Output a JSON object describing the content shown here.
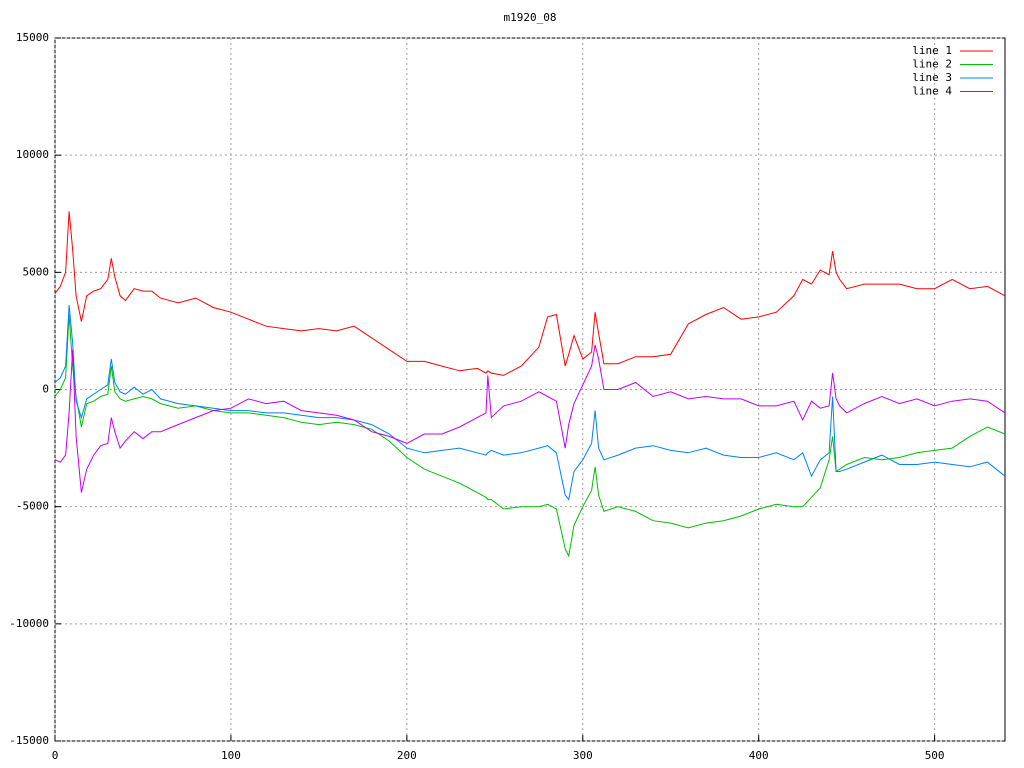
{
  "chart_data": {
    "type": "line",
    "title": "m1920_08",
    "legend": "top-right",
    "grid": true,
    "x": [
      0,
      3,
      6,
      8,
      10,
      12,
      15,
      18,
      22,
      26,
      30,
      32,
      34,
      37,
      40,
      45,
      50,
      55,
      60,
      70,
      80,
      90,
      100,
      110,
      120,
      130,
      140,
      150,
      160,
      170,
      180,
      190,
      200,
      210,
      220,
      230,
      240,
      245,
      246,
      248,
      255,
      265,
      275,
      280,
      285,
      290,
      292,
      295,
      300,
      305,
      307,
      309,
      312,
      320,
      330,
      340,
      350,
      360,
      370,
      380,
      390,
      400,
      410,
      420,
      425,
      430,
      435,
      440,
      442,
      444,
      446,
      450,
      460,
      470,
      480,
      490,
      500,
      510,
      520,
      530,
      540
    ],
    "series": [
      {
        "name": "line 1",
        "color": "#ff0000",
        "values": [
          4100,
          4400,
          5000,
          7600,
          6000,
          4000,
          2900,
          4000,
          4200,
          4300,
          4700,
          5600,
          4800,
          4000,
          3800,
          4300,
          4200,
          4200,
          3900,
          3700,
          3900,
          3500,
          3300,
          3000,
          2700,
          2600,
          2500,
          2600,
          2500,
          2700,
          2200,
          1700,
          1200,
          1200,
          1000,
          800,
          900,
          700,
          800,
          700,
          600,
          1000,
          1800,
          3100,
          3200,
          1000,
          1500,
          2300,
          1300,
          1600,
          3300,
          2400,
          1100,
          1100,
          1400,
          1400,
          1500,
          2800,
          3200,
          3500,
          3000,
          3100,
          3300,
          4000,
          4700,
          4500,
          5100,
          4900,
          5900,
          5000,
          4700,
          4300,
          4500,
          4500,
          4500,
          4300,
          4300,
          4700,
          4300,
          4400,
          4000
        ]
      },
      {
        "name": "line 2",
        "color": "#00c000",
        "values": [
          -300,
          0,
          500,
          3200,
          1000,
          -300,
          -1600,
          -600,
          -500,
          -300,
          -200,
          1000,
          -100,
          -400,
          -500,
          -400,
          -300,
          -400,
          -600,
          -800,
          -700,
          -900,
          -1000,
          -1000,
          -1100,
          -1200,
          -1400,
          -1500,
          -1400,
          -1500,
          -1700,
          -2200,
          -2900,
          -3400,
          -3700,
          -4000,
          -4400,
          -4600,
          -4700,
          -4700,
          -5100,
          -5000,
          -5000,
          -4900,
          -5100,
          -6800,
          -7100,
          -5800,
          -5000,
          -4300,
          -3300,
          -4500,
          -5200,
          -5000,
          -5200,
          -5600,
          -5700,
          -5900,
          -5700,
          -5600,
          -5400,
          -5100,
          -4900,
          -5000,
          -5000,
          -4600,
          -4200,
          -3000,
          -2000,
          -3500,
          -3400,
          -3200,
          -2900,
          -3000,
          -2900,
          -2700,
          -2600,
          -2500,
          -2000,
          -1600,
          -1900
        ]
      },
      {
        "name": "line 3",
        "color": "#0080ff",
        "values": [
          300,
          500,
          1000,
          3600,
          2000,
          -500,
          -1200,
          -400,
          -200,
          0,
          200,
          1300,
          300,
          -100,
          -200,
          100,
          -200,
          0,
          -400,
          -600,
          -700,
          -800,
          -900,
          -900,
          -1000,
          -1000,
          -1100,
          -1200,
          -1200,
          -1300,
          -1500,
          -1900,
          -2500,
          -2700,
          -2600,
          -2500,
          -2700,
          -2800,
          -2700,
          -2600,
          -2800,
          -2700,
          -2500,
          -2400,
          -2700,
          -4500,
          -4700,
          -3500,
          -3000,
          -2300,
          -900,
          -2500,
          -3000,
          -2800,
          -2500,
          -2400,
          -2600,
          -2700,
          -2500,
          -2800,
          -2900,
          -2900,
          -2700,
          -3000,
          -2700,
          -3700,
          -3000,
          -2700,
          -300,
          -3500,
          -3500,
          -3400,
          -3100,
          -2800,
          -3200,
          -3200,
          -3100,
          -3200,
          -3300,
          -3100,
          -3700
        ]
      },
      {
        "name": "line 4",
        "color": "#c000ff",
        "values": [
          -3000,
          -3100,
          -2800,
          -1000,
          1700,
          -2000,
          -4400,
          -3400,
          -2800,
          -2400,
          -2300,
          -1200,
          -1800,
          -2500,
          -2200,
          -1800,
          -2100,
          -1800,
          -1800,
          -1500,
          -1200,
          -900,
          -800,
          -400,
          -600,
          -500,
          -900,
          -1000,
          -1100,
          -1300,
          -1800,
          -2000,
          -2300,
          -1900,
          -1900,
          -1600,
          -1200,
          -1000,
          600,
          -1200,
          -700,
          -500,
          -100,
          -300,
          -500,
          -2500,
          -1500,
          -600,
          200,
          1000,
          1900,
          1300,
          0,
          0,
          300,
          -300,
          -100,
          -400,
          -300,
          -400,
          -400,
          -700,
          -700,
          -500,
          -1300,
          -500,
          -800,
          -700,
          700,
          -400,
          -700,
          -1000,
          -600,
          -300,
          -600,
          -400,
          -700,
          -500,
          -400,
          -500,
          -1000
        ]
      }
    ],
    "xlim": [
      0,
      540
    ],
    "xticks": [
      0,
      100,
      200,
      300,
      400,
      500
    ],
    "ylim": [
      -15000,
      15000
    ],
    "yticks": [
      -15000,
      -10000,
      -5000,
      0,
      5000,
      10000,
      15000
    ]
  }
}
